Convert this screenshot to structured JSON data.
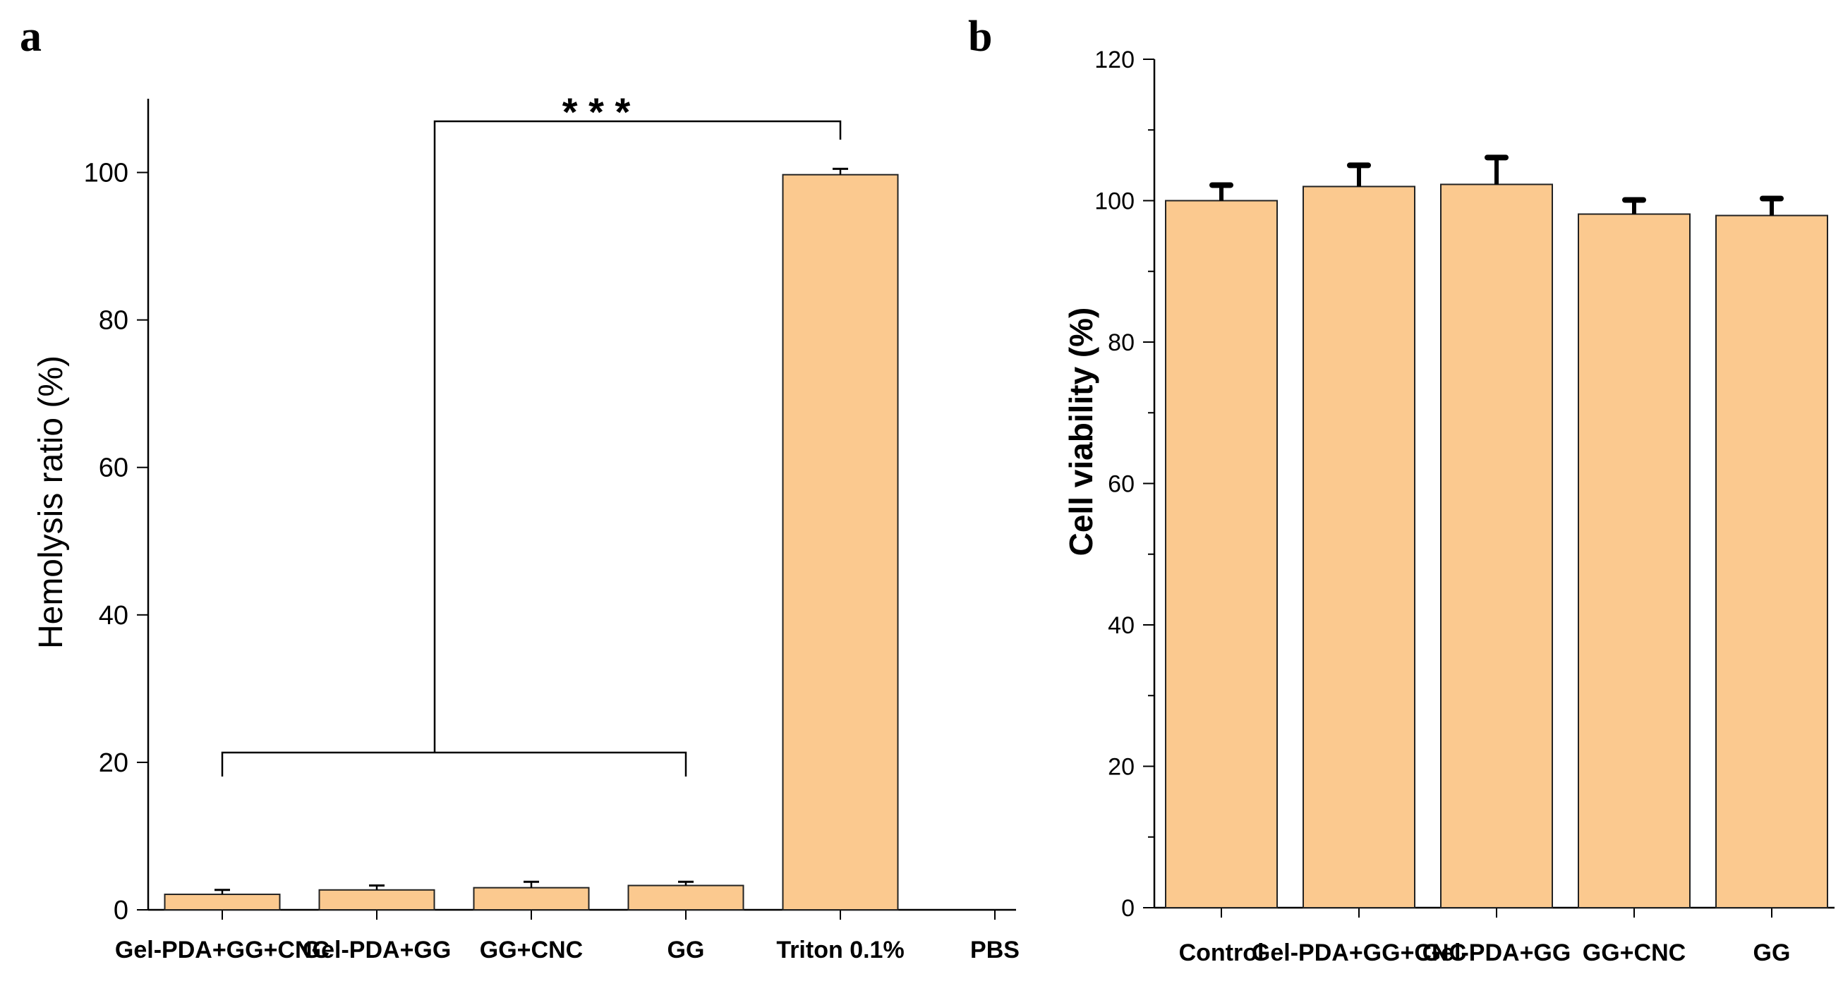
{
  "panel_labels": {
    "a": "a",
    "b": "b"
  },
  "chart_data": [
    {
      "type": "bar",
      "panel": "a",
      "title": "",
      "xlabel": "",
      "ylabel": "Hemolysis ratio (%)",
      "ylim": [
        0,
        110
      ],
      "yticks": [
        0,
        20,
        40,
        60,
        80,
        100
      ],
      "categories": [
        "Gel-PDA+GG+CNC",
        "Gel-PDA+GG",
        "GG+CNC",
        "GG",
        "Triton 0.1%",
        "PBS"
      ],
      "values": [
        2.1,
        2.7,
        3.0,
        3.3,
        99.7,
        0
      ],
      "errors": [
        0.6,
        0.6,
        0.8,
        0.5,
        0.8,
        0
      ],
      "bar_color": "#fbc98f",
      "significance": {
        "label": "* * *",
        "group": [
          "Gel-PDA+GG+CNC",
          "Gel-PDA+GG",
          "GG+CNC",
          "GG"
        ],
        "vs": "Triton 0.1%"
      }
    },
    {
      "type": "bar",
      "panel": "b",
      "title": "",
      "xlabel": "",
      "ylabel": "Cell viability (%)",
      "ylim": [
        0,
        120
      ],
      "yticks": [
        0,
        20,
        40,
        60,
        80,
        100,
        120
      ],
      "categories": [
        "Control",
        "Gel-PDA+GG+CNC",
        "Gel-PDA+GG",
        "GG+CNC",
        "GG"
      ],
      "values": [
        100,
        102,
        102.3,
        98.1,
        97.9
      ],
      "errors": [
        2.2,
        3.0,
        3.8,
        2.0,
        2.4
      ],
      "bar_color": "#fbc98f"
    }
  ]
}
